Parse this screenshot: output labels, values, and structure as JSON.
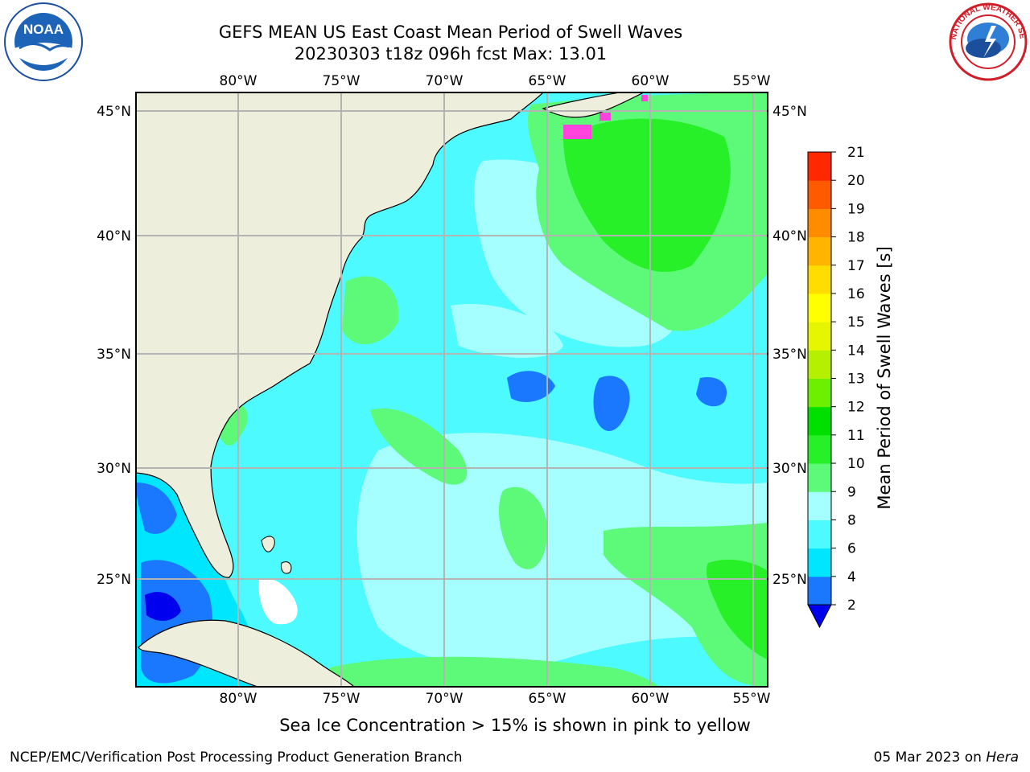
{
  "title_line1": "GEFS MEAN US East Coast Mean Period of Swell Waves",
  "title_line2": "20230303 t18z 096h fcst   Max: 13.01",
  "lon_labels": [
    "80°W",
    "75°W",
    "70°W",
    "65°W",
    "60°W",
    "55°W"
  ],
  "lat_labels": [
    "45°N",
    "40°N",
    "35°N",
    "30°N",
    "25°N"
  ],
  "colorbar": {
    "label": "Mean Period of Swell Waves [s]",
    "ticks": [
      "2",
      "4",
      "6",
      "8",
      "9",
      "10",
      "11",
      "12",
      "13",
      "14",
      "15",
      "16",
      "17",
      "18",
      "19",
      "20",
      "21"
    ],
    "colors": [
      "#0000ee",
      "#1a78ff",
      "#00e6ff",
      "#4dfaff",
      "#a6ffff",
      "#5dfa7a",
      "#28f028",
      "#00e000",
      "#6cf000",
      "#b4f000",
      "#e6f500",
      "#ffff00",
      "#ffdd00",
      "#ffb400",
      "#ff8c00",
      "#ff5a00",
      "#ff2800",
      "#ff0000"
    ]
  },
  "footer_note": "Sea Ice Concentration > 15% is shown in pink to yellow",
  "footer_left": "NCEP/EMC/Verification Post Processing Product Generation Branch",
  "footer_date": "05 Mar 2023 on ",
  "footer_host": "Hera",
  "logos": {
    "noaa_text": "NOAA",
    "nws_text": "NATIONAL WEATHER SERVICE"
  },
  "colors": {
    "land": "#eeeedd",
    "grid": "#b4b4b4",
    "ocean_base": "#4dfaff"
  }
}
